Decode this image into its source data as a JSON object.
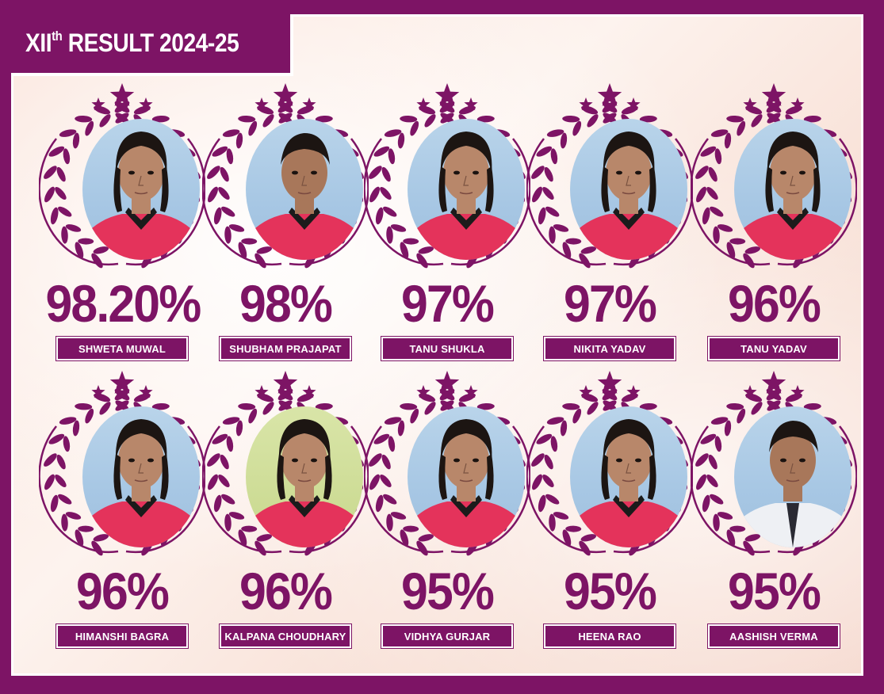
{
  "header": {
    "title_prefix": "XII",
    "title_sup": "th",
    "title_rest": " RESULT 2024-25"
  },
  "colors": {
    "brand": "#7d1465",
    "background": "#fbe9e1",
    "shirt": "#e4335b"
  },
  "students": [
    {
      "percent": "98.20%",
      "name": "SHWETA MUWAL",
      "photo_bg": "blue",
      "gender": "f",
      "photo_icon": "student-photo"
    },
    {
      "percent": "98%",
      "name": "SHUBHAM PRAJAPAT",
      "photo_bg": "blue",
      "gender": "m",
      "photo_icon": "student-photo"
    },
    {
      "percent": "97%",
      "name": "TANU SHUKLA",
      "photo_bg": "blue",
      "gender": "f",
      "photo_icon": "student-photo"
    },
    {
      "percent": "97%",
      "name": "NIKITA YADAV",
      "photo_bg": "blue",
      "gender": "f",
      "photo_icon": "student-photo"
    },
    {
      "percent": "96%",
      "name": "TANU YADAV",
      "photo_bg": "blue",
      "gender": "f",
      "photo_icon": "student-photo"
    },
    {
      "percent": "96%",
      "name": "HIMANSHI BAGRA",
      "photo_bg": "blue",
      "gender": "f",
      "photo_icon": "student-photo"
    },
    {
      "percent": "96%",
      "name": "KALPANA CHOUDHARY",
      "photo_bg": "green",
      "gender": "f",
      "photo_icon": "student-photo"
    },
    {
      "percent": "95%",
      "name": "VIDHYA GURJAR",
      "photo_bg": "blue",
      "gender": "f",
      "photo_icon": "student-photo"
    },
    {
      "percent": "95%",
      "name": "HEENA RAO",
      "photo_bg": "blue",
      "gender": "f",
      "photo_icon": "student-photo"
    },
    {
      "percent": "95%",
      "name": "AASHISH VERMA",
      "photo_bg": "blue",
      "gender": "m-white",
      "photo_icon": "student-photo"
    }
  ]
}
